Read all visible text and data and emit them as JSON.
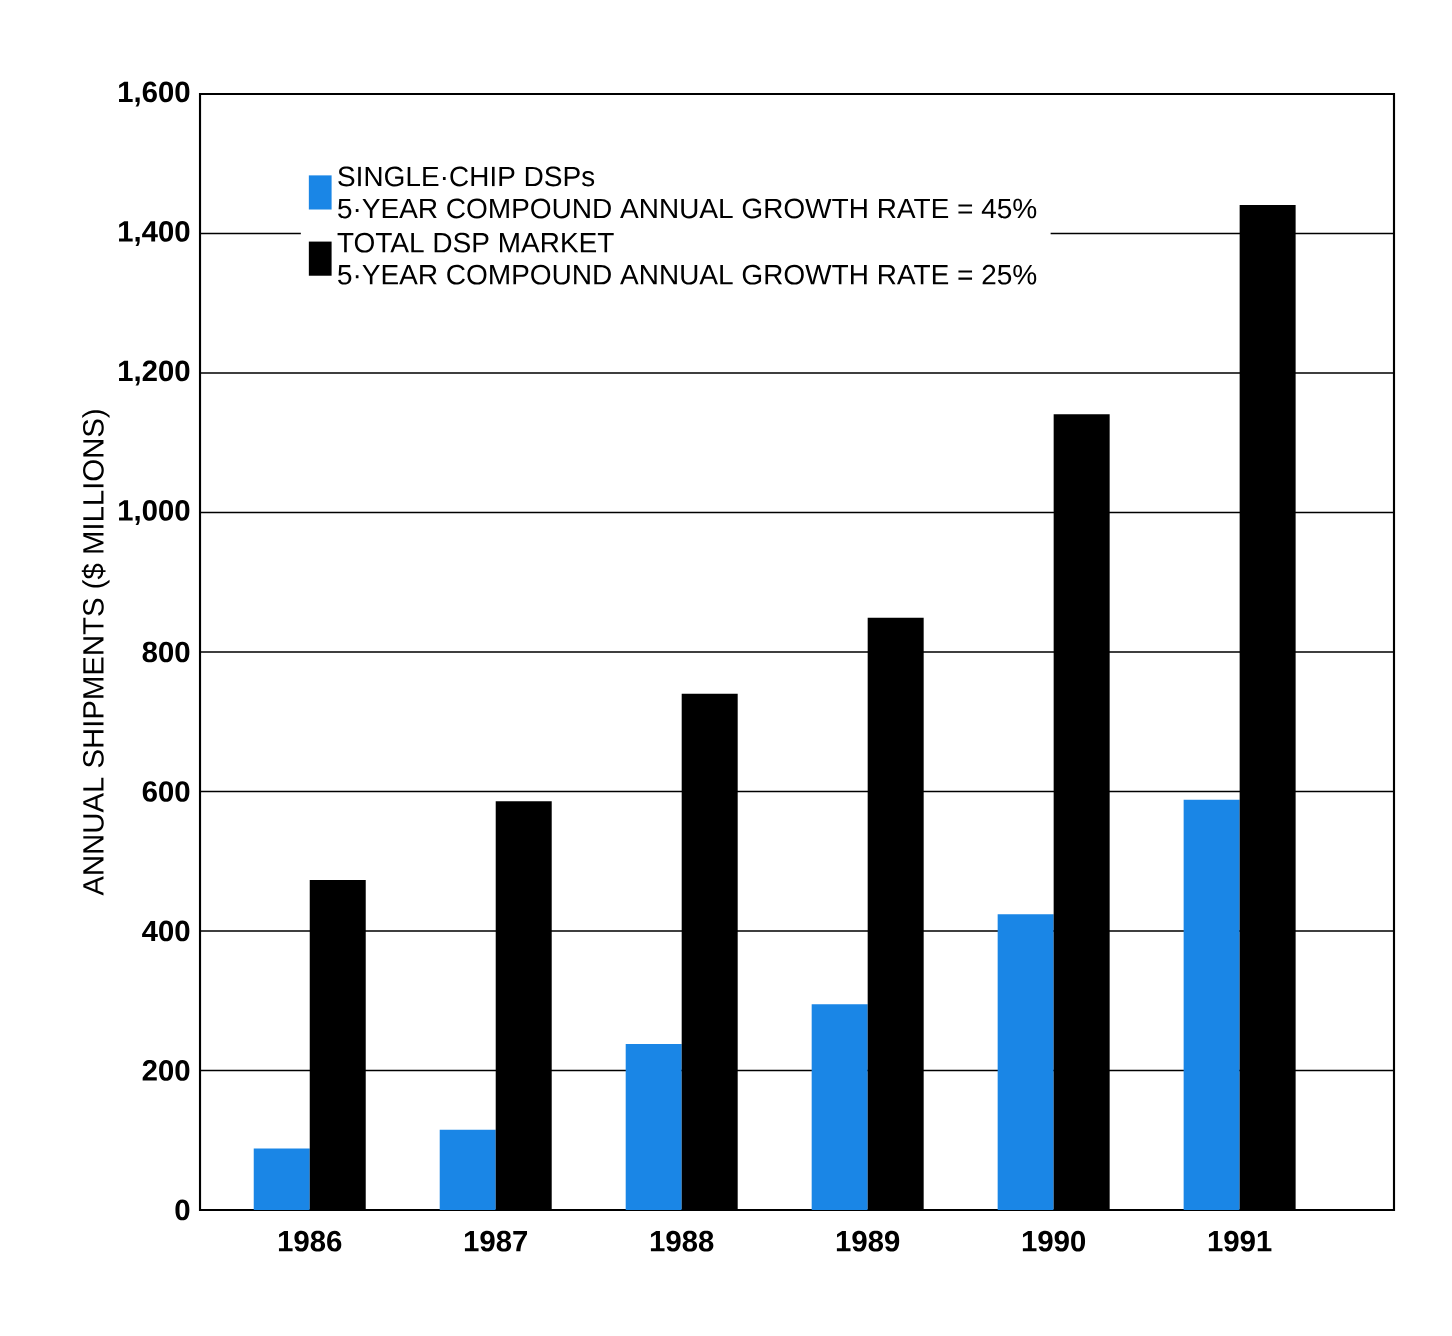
{
  "chart_data": {
    "type": "bar",
    "ylabel": "ANNUAL SHIPMENTS ($ MILLIONS)",
    "categories": [
      "1986",
      "1987",
      "1988",
      "1989",
      "1990",
      "1991"
    ],
    "series": [
      {
        "name": "SINGLE·CHIP DSPs\n5·YEAR COMPOUND ANNUAL GROWTH RATE = 45%",
        "color": "#1a86e6",
        "values": [
          88,
          115,
          238,
          295,
          424,
          588
        ]
      },
      {
        "name": "TOTAL DSP MARKET\n5·YEAR COMPOUND ANNUAL GROWTH RATE = 25%",
        "color": "#000000",
        "values": [
          473,
          586,
          740,
          849,
          1141,
          1441
        ]
      }
    ],
    "ylim": [
      0,
      1600
    ],
    "yticks": [
      0,
      200,
      400,
      600,
      800,
      {
        "value": 1000,
        "label": "1,000"
      },
      {
        "value": 1200,
        "label": "1,200"
      },
      {
        "value": 1400,
        "label": "1,400"
      },
      {
        "value": 1600,
        "label": "1,600"
      }
    ],
    "grid": "y",
    "legend": "top left"
  }
}
